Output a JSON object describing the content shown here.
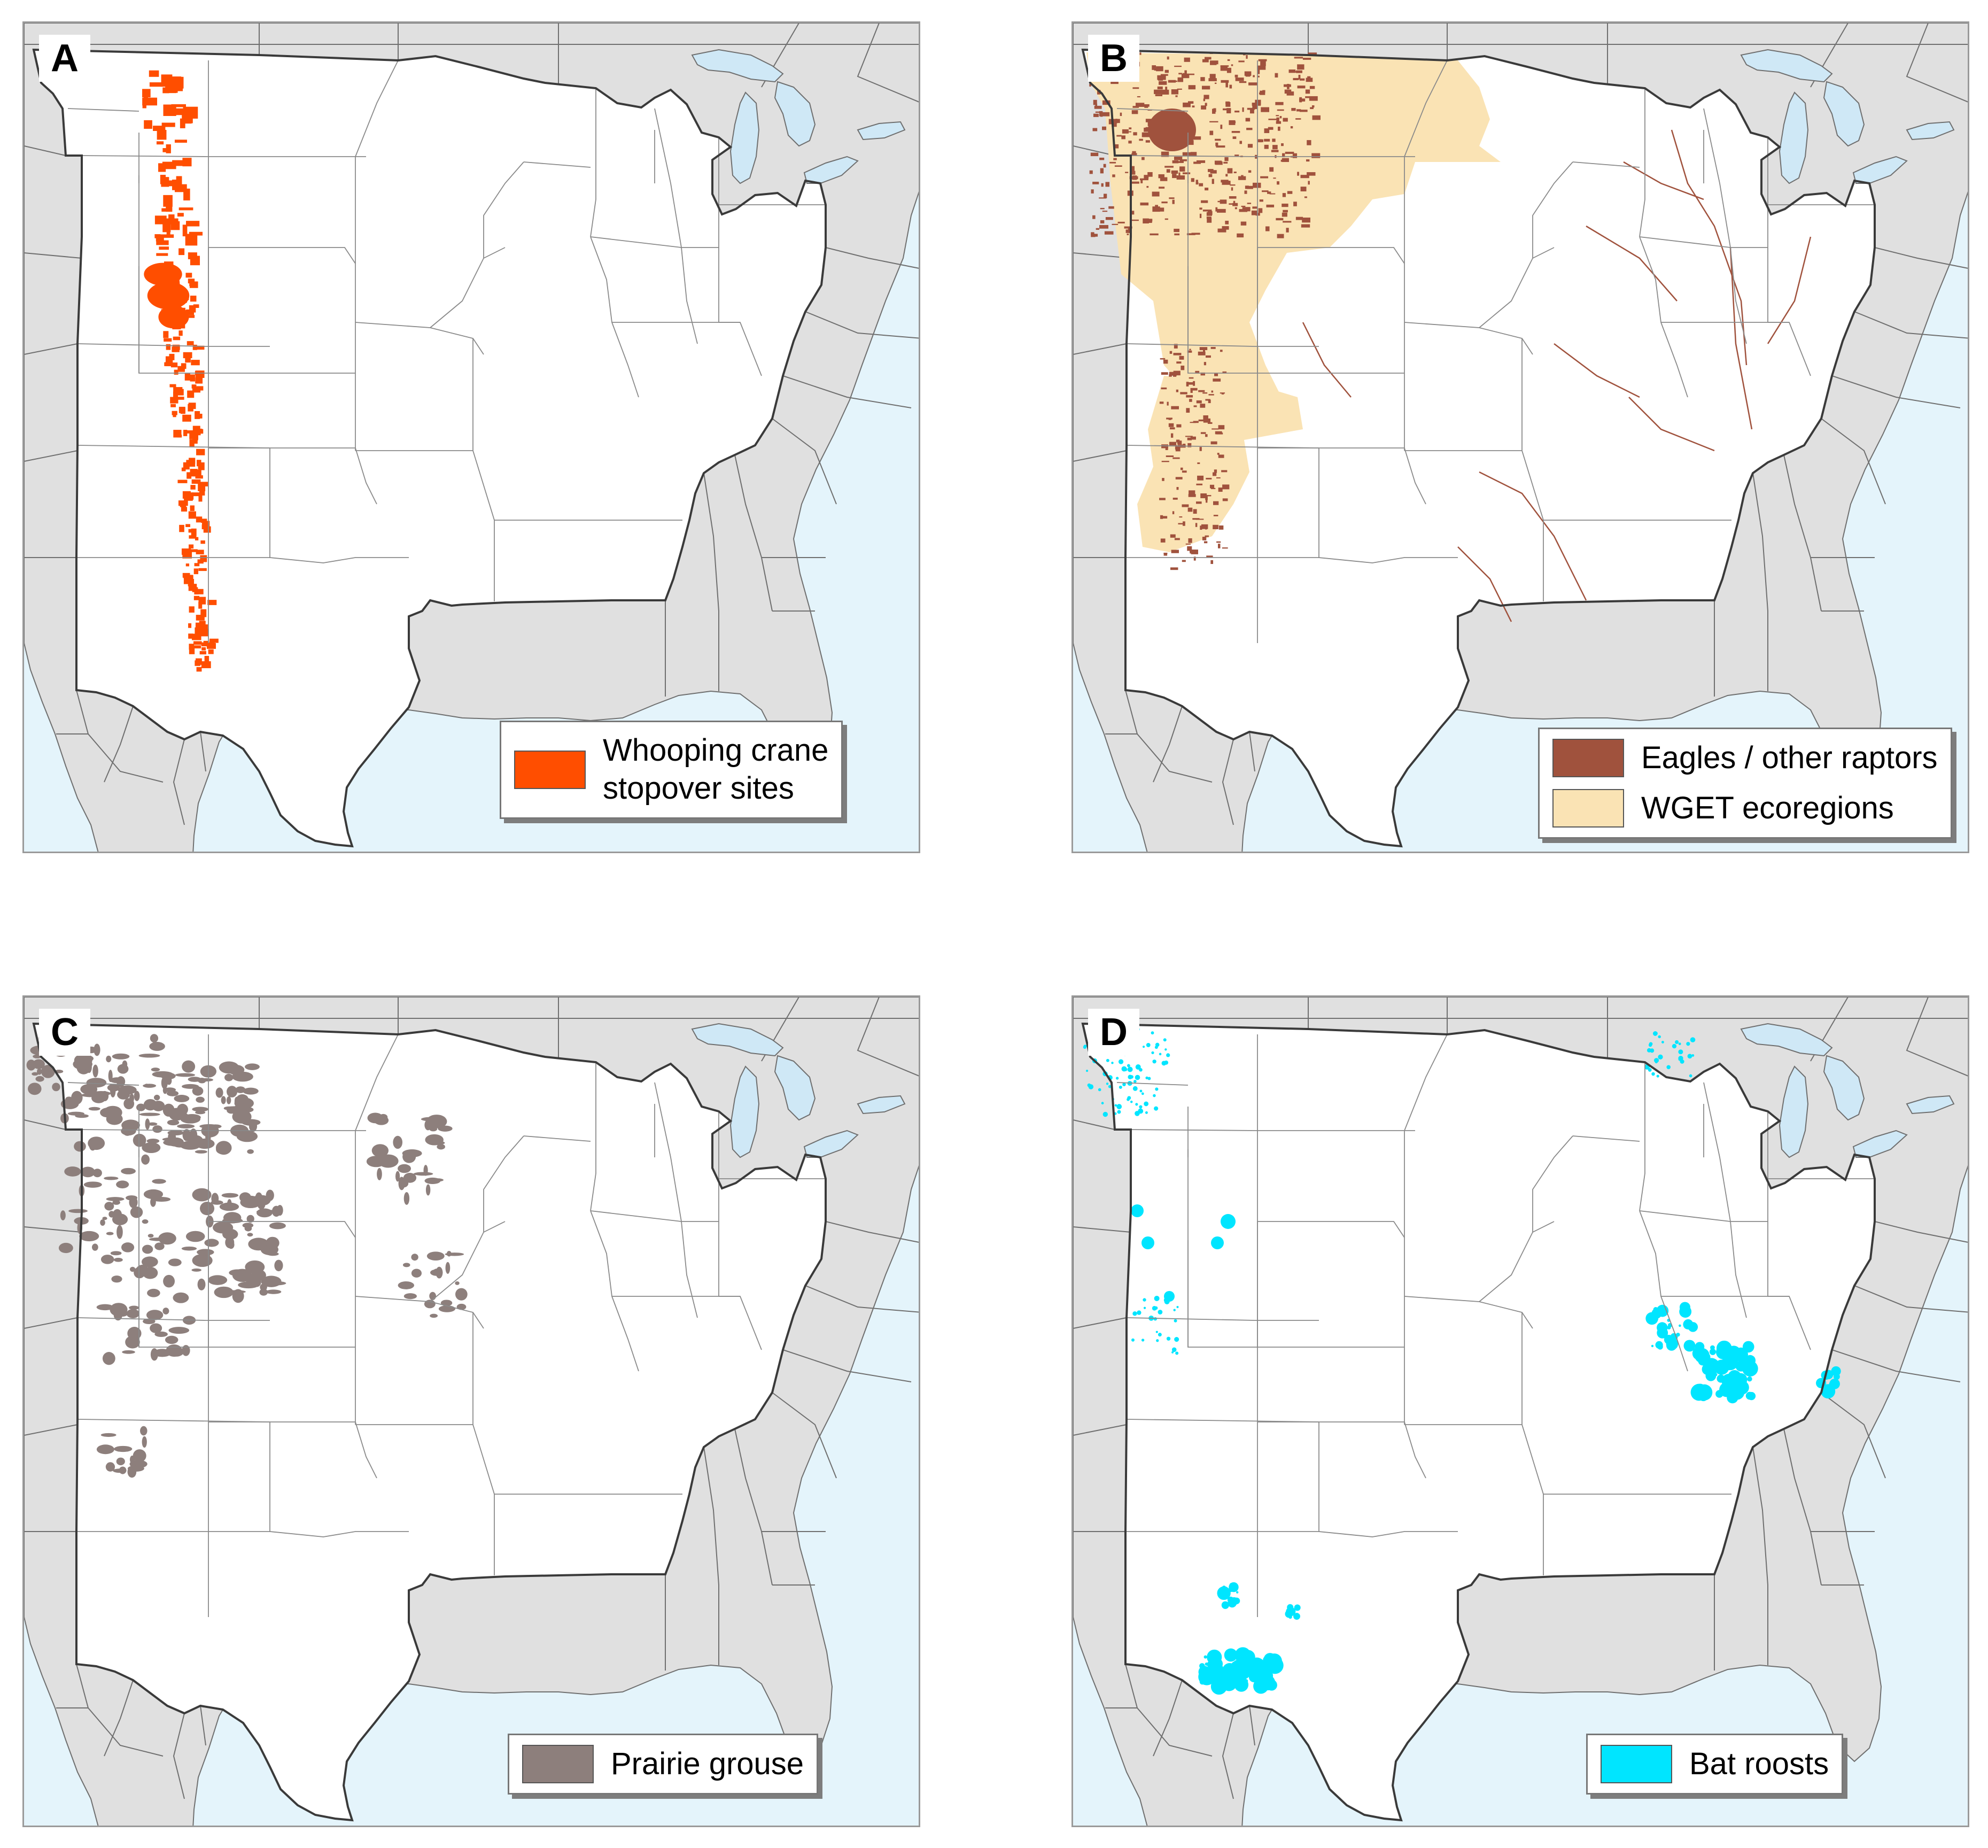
{
  "panels": [
    {
      "label": "A",
      "legend": [
        {
          "lines": [
            "Whooping crane",
            "stopover sites"
          ],
          "color": "#ff4e00"
        }
      ],
      "layer": "whooping-crane-stopover-sites"
    },
    {
      "label": "B",
      "legend": [
        {
          "lines": [
            "Eagles / other raptors"
          ],
          "color": "#a0523d"
        },
        {
          "lines": [
            "WGET ecoregions"
          ],
          "color": "#fae3b4"
        }
      ],
      "layer": "eagles-and-wget-ecoregions"
    },
    {
      "label": "C",
      "legend": [
        {
          "lines": [
            "Prairie grouse"
          ],
          "color": "#8d7f7c"
        }
      ],
      "layer": "prairie-grouse"
    },
    {
      "label": "D",
      "legend": [
        {
          "lines": [
            "Bat roosts"
          ],
          "color": "#00e5ff"
        }
      ],
      "layer": "bat-roosts"
    }
  ],
  "colors": {
    "land_outside": "#e0e0e0",
    "study_region": "#ffffff",
    "water": "#e4f4fb",
    "lakes": "#cfe8f6",
    "borders": "#6f6f6f",
    "region_outline": "#3a3a3a"
  }
}
